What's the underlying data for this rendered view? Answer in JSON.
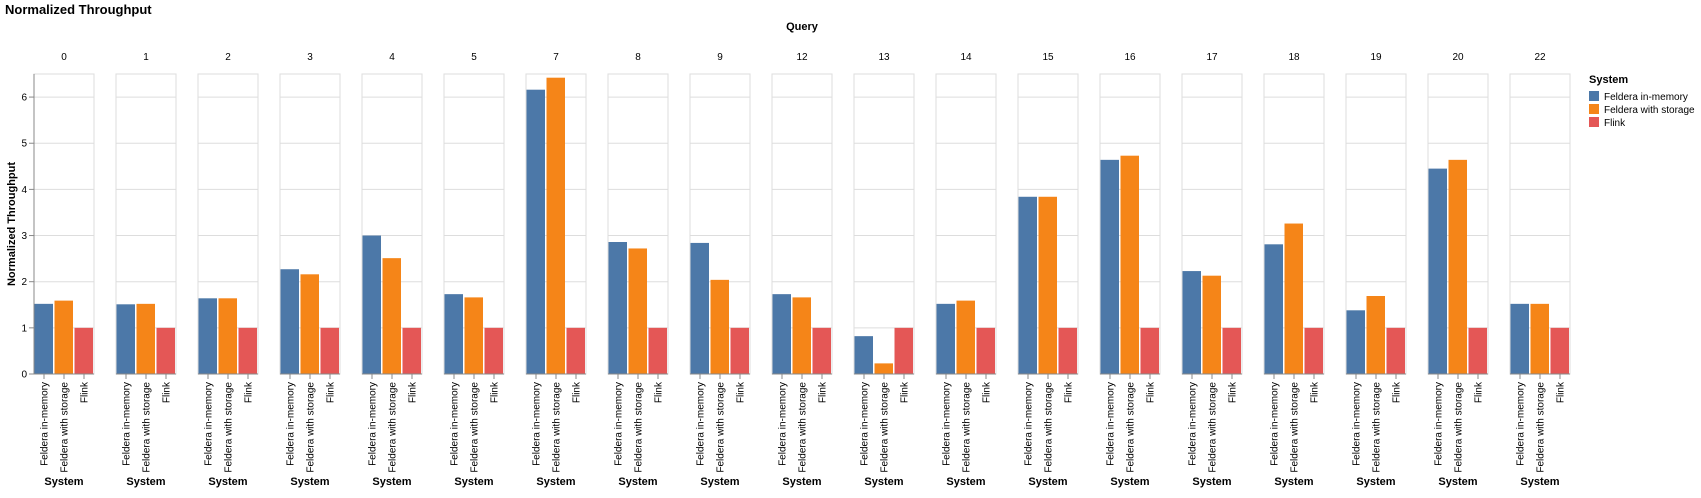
{
  "chart_data": {
    "type": "bar",
    "title": "Normalized Throughput",
    "facet_title": "Query",
    "y_label": "Normalized Throughput",
    "x_label": "System",
    "legend_title": "System",
    "facets": [
      "0",
      "1",
      "2",
      "3",
      "4",
      "5",
      "7",
      "8",
      "9",
      "12",
      "13",
      "14",
      "15",
      "16",
      "17",
      "18",
      "19",
      "20",
      "22"
    ],
    "series": [
      {
        "name": "Feldera in-memory",
        "color": "#4c78a8",
        "values": [
          1.52,
          1.51,
          1.64,
          2.27,
          3.0,
          1.73,
          6.16,
          2.86,
          2.84,
          1.73,
          0.82,
          1.52,
          3.84,
          4.64,
          2.23,
          2.81,
          1.38,
          4.45,
          1.52
        ]
      },
      {
        "name": "Feldera with storage",
        "color": "#f58518",
        "values": [
          1.59,
          1.52,
          1.64,
          2.16,
          2.51,
          1.66,
          6.42,
          2.72,
          2.04,
          1.66,
          0.23,
          1.59,
          3.84,
          4.73,
          2.13,
          3.26,
          1.69,
          4.64,
          1.52
        ]
      },
      {
        "name": "Flink",
        "color": "#e45756",
        "values": [
          1,
          1,
          1,
          1,
          1,
          1,
          1,
          1,
          1,
          1,
          1,
          1,
          1,
          1,
          1,
          1,
          1,
          1,
          1
        ]
      }
    ],
    "ylim": [
      0,
      6.5
    ],
    "yticks": [
      0,
      1,
      2,
      3,
      4,
      5,
      6
    ],
    "grid": true
  }
}
